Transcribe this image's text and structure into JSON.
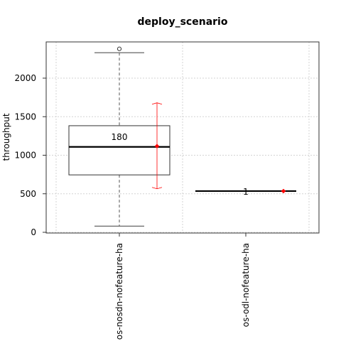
{
  "chart_data": {
    "type": "boxplot",
    "title": "deploy_scenario",
    "ylabel": "throughput",
    "xlabel": "",
    "ylim": [
      0,
      2500
    ],
    "yticks": [
      0,
      500,
      1000,
      1500,
      2000
    ],
    "grid": true,
    "categories": [
      "os-nosdn-nofeature-ha",
      "os-odl-nofeature-ha"
    ],
    "boxes": [
      {
        "category": "os-nosdn-nofeature-ha",
        "count_label": "180",
        "whisker_low": 80,
        "q1": 745,
        "median": 1108,
        "q3": 1383,
        "whisker_high": 2330,
        "outliers": [
          2380
        ],
        "mean": 1118,
        "sd_low": 565,
        "sd_high": 1680
      },
      {
        "category": "os-odl-nofeature-ha",
        "count_label": "1",
        "whisker_low": 535,
        "q1": 535,
        "median": 535,
        "q3": 535,
        "whisker_high": 535,
        "outliers": [],
        "mean": 535,
        "sd_low": null,
        "sd_high": null
      }
    ],
    "colors": {
      "box_border": "#333333",
      "median": "#000000",
      "whisker": "#555555",
      "mean": "#ff0000",
      "error_bar": "#ff0000",
      "grid": "#d3d3d3"
    }
  }
}
